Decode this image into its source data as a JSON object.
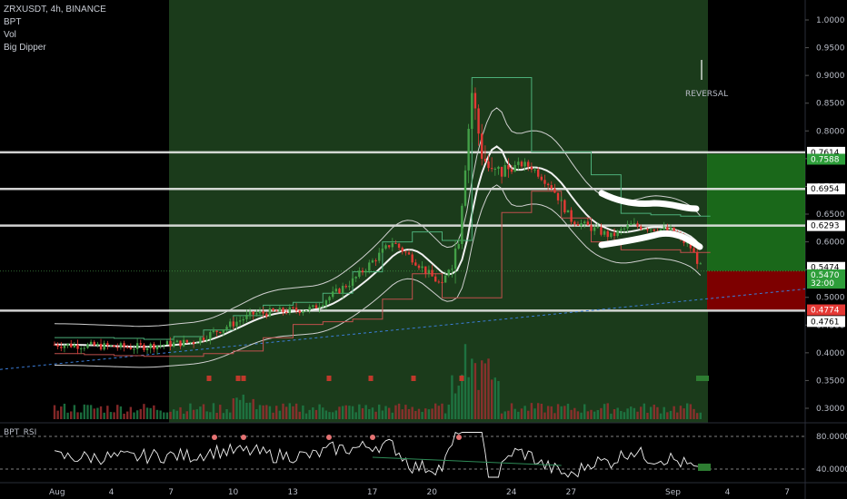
{
  "header": {
    "symbol_line": "ZRXUSDT, 4h, BINANCE",
    "indicators": [
      "BPT",
      "Vol",
      "Big Dipper"
    ]
  },
  "annotation": {
    "text": "REVERSAL"
  },
  "rsi_panel": {
    "label": "BPT_RSI",
    "ticks": [
      "80.0000",
      "40.0000"
    ]
  },
  "colors": {
    "green_zone": "#1b3b1b",
    "bull": "#26a69a",
    "bear": "#ef5350",
    "target_zone": "#1f7a1f",
    "stop_zone": "#8b0000",
    "level_line": "#e8e8e8"
  },
  "chart_data": {
    "type": "candlestick",
    "symbol": "ZRXUSDT",
    "interval": "4h",
    "exchange": "BINANCE",
    "y_ticks": [
      "1.0000",
      "0.9500",
      "0.9000",
      "0.8500",
      "0.8000",
      "0.7500",
      "0.7000",
      "0.6500",
      "0.6000",
      "0.5500",
      "0.5000",
      "0.4500",
      "0.4000",
      "0.3500",
      "0.3000"
    ],
    "x_ticks": [
      "Aug",
      "4",
      "7",
      "10",
      "13",
      "17",
      "20",
      "24",
      "27",
      "Sep",
      "4",
      "7"
    ],
    "horizontal_levels": [
      0.7614,
      0.6954,
      0.6293,
      0.4761
    ],
    "price_tags": [
      {
        "value": "0.7614",
        "style": "white"
      },
      {
        "value": "0.7588",
        "style": "green"
      },
      {
        "value": "0.6954",
        "style": "white"
      },
      {
        "value": "0.6293",
        "style": "white"
      },
      {
        "value": "0.5474",
        "style": "white"
      },
      {
        "value": "0.5470",
        "style": "green"
      },
      {
        "value": "32:00",
        "style": "green"
      },
      {
        "value": "0.4774",
        "style": "red"
      },
      {
        "value": "0.4761",
        "style": "white"
      }
    ],
    "price_path": [
      {
        "x": 0,
        "y": 0.415
      },
      {
        "x": 4,
        "y": 0.41
      },
      {
        "x": 7,
        "y": 0.42
      },
      {
        "x": 10,
        "y": 0.47
      },
      {
        "x": 13,
        "y": 0.48
      },
      {
        "x": 15,
        "y": 0.53
      },
      {
        "x": 17,
        "y": 0.6
      },
      {
        "x": 18,
        "y": 0.57
      },
      {
        "x": 19.5,
        "y": 0.52
      },
      {
        "x": 20.3,
        "y": 0.6
      },
      {
        "x": 20.6,
        "y": 0.72
      },
      {
        "x": 21,
        "y": 0.87
      },
      {
        "x": 21.5,
        "y": 0.76
      },
      {
        "x": 22,
        "y": 0.72
      },
      {
        "x": 23.5,
        "y": 0.74
      },
      {
        "x": 24,
        "y": 0.735
      },
      {
        "x": 25,
        "y": 0.7
      },
      {
        "x": 26,
        "y": 0.64
      },
      {
        "x": 27,
        "y": 0.625
      },
      {
        "x": 28,
        "y": 0.61
      },
      {
        "x": 29,
        "y": 0.63
      },
      {
        "x": 30,
        "y": 0.625
      },
      {
        "x": 31,
        "y": 0.62
      },
      {
        "x": 32,
        "y": 0.59
      },
      {
        "x": 32.6,
        "y": 0.547
      }
    ]
  }
}
